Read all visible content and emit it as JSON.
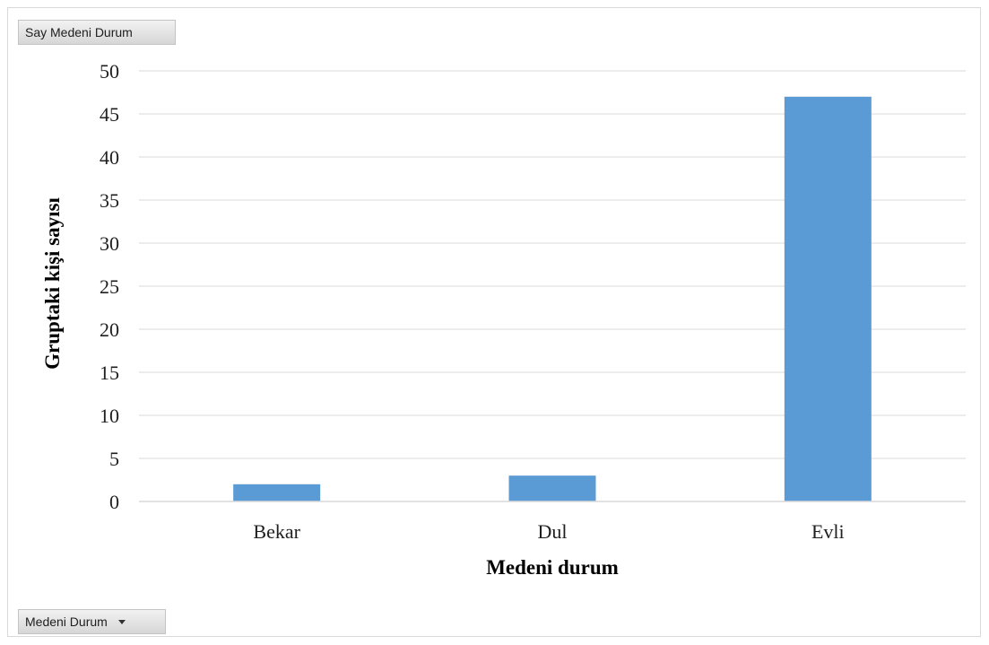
{
  "pivot_fields": {
    "value_field": "Say Medeni Durum",
    "axis_field": "Medeni Durum",
    "axis_field_icon": "dropdown-arrow-icon"
  },
  "chart_data": {
    "type": "bar",
    "categories": [
      "Bekar",
      "Dul",
      "Evli"
    ],
    "values": [
      2,
      3,
      47
    ],
    "xlabel": "Medeni durum",
    "ylabel": "Gruptaki kişi sayısı",
    "ylim": [
      0,
      50
    ],
    "yticks": [
      0,
      5,
      10,
      15,
      20,
      25,
      30,
      35,
      40,
      45,
      50
    ],
    "grid": true,
    "bar_color": "#5b9bd5",
    "grid_color": "#d9d9d9"
  }
}
